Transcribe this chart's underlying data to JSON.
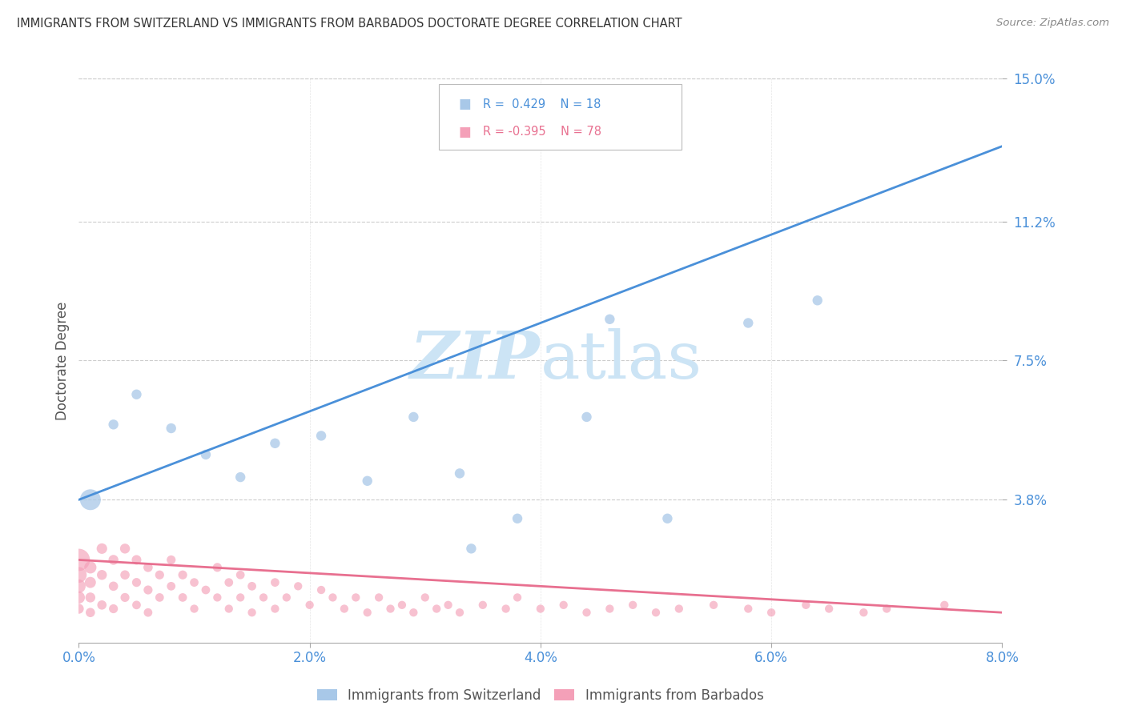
{
  "title": "IMMIGRANTS FROM SWITZERLAND VS IMMIGRANTS FROM BARBADOS DOCTORATE DEGREE CORRELATION CHART",
  "source": "Source: ZipAtlas.com",
  "ylabel": "Doctorate Degree",
  "xlim": [
    0.0,
    0.08
  ],
  "ylim": [
    0.0,
    0.15
  ],
  "xtick_labels": [
    "0.0%",
    "2.0%",
    "4.0%",
    "6.0%",
    "8.0%"
  ],
  "xtick_values": [
    0.0,
    0.02,
    0.04,
    0.06,
    0.08
  ],
  "ytick_labels": [
    "3.8%",
    "7.5%",
    "11.2%",
    "15.0%"
  ],
  "ytick_values": [
    0.038,
    0.075,
    0.112,
    0.15
  ],
  "switzerland_color": "#a8c8e8",
  "barbados_color": "#f4a0b8",
  "trendline_switzerland_color": "#4a90d9",
  "trendline_barbados_color": "#e87090",
  "background_color": "#ffffff",
  "grid_color": "#cccccc",
  "axis_label_color": "#4a90d9",
  "title_color": "#333333",
  "watermark_color": "#cce4f5",
  "switzerland_trendline_x0": 0.0,
  "switzerland_trendline_y0": 0.038,
  "switzerland_trendline_x1": 0.08,
  "switzerland_trendline_y1": 0.132,
  "barbados_trendline_x0": 0.0,
  "barbados_trendline_y0": 0.022,
  "barbados_trendline_x1": 0.08,
  "barbados_trendline_y1": 0.008,
  "switzerland_points_x": [
    0.001,
    0.003,
    0.005,
    0.008,
    0.011,
    0.014,
    0.017,
    0.021,
    0.025,
    0.029,
    0.033,
    0.038,
    0.044,
    0.051,
    0.058,
    0.064,
    0.034,
    0.046
  ],
  "switzerland_points_y": [
    0.038,
    0.058,
    0.066,
    0.057,
    0.05,
    0.044,
    0.053,
    0.055,
    0.043,
    0.06,
    0.045,
    0.033,
    0.06,
    0.033,
    0.085,
    0.091,
    0.025,
    0.086
  ],
  "switzerland_sizes": [
    350,
    80,
    80,
    80,
    80,
    80,
    80,
    80,
    80,
    80,
    80,
    80,
    80,
    80,
    80,
    80,
    80,
    80
  ],
  "barbados_points_x": [
    0.0,
    0.0,
    0.0,
    0.0,
    0.0,
    0.001,
    0.001,
    0.001,
    0.001,
    0.002,
    0.002,
    0.002,
    0.003,
    0.003,
    0.003,
    0.004,
    0.004,
    0.004,
    0.005,
    0.005,
    0.005,
    0.006,
    0.006,
    0.006,
    0.007,
    0.007,
    0.008,
    0.008,
    0.009,
    0.009,
    0.01,
    0.01,
    0.011,
    0.012,
    0.012,
    0.013,
    0.013,
    0.014,
    0.014,
    0.015,
    0.015,
    0.016,
    0.017,
    0.017,
    0.018,
    0.019,
    0.02,
    0.021,
    0.022,
    0.023,
    0.024,
    0.025,
    0.026,
    0.027,
    0.028,
    0.029,
    0.03,
    0.031,
    0.032,
    0.033,
    0.035,
    0.037,
    0.038,
    0.04,
    0.042,
    0.044,
    0.046,
    0.048,
    0.05,
    0.052,
    0.055,
    0.058,
    0.06,
    0.063,
    0.065,
    0.068,
    0.07,
    0.075
  ],
  "barbados_points_y": [
    0.022,
    0.018,
    0.015,
    0.012,
    0.009,
    0.02,
    0.016,
    0.012,
    0.008,
    0.025,
    0.018,
    0.01,
    0.022,
    0.015,
    0.009,
    0.025,
    0.018,
    0.012,
    0.022,
    0.016,
    0.01,
    0.02,
    0.014,
    0.008,
    0.018,
    0.012,
    0.022,
    0.015,
    0.018,
    0.012,
    0.016,
    0.009,
    0.014,
    0.02,
    0.012,
    0.016,
    0.009,
    0.018,
    0.012,
    0.015,
    0.008,
    0.012,
    0.016,
    0.009,
    0.012,
    0.015,
    0.01,
    0.014,
    0.012,
    0.009,
    0.012,
    0.008,
    0.012,
    0.009,
    0.01,
    0.008,
    0.012,
    0.009,
    0.01,
    0.008,
    0.01,
    0.009,
    0.012,
    0.009,
    0.01,
    0.008,
    0.009,
    0.01,
    0.008,
    0.009,
    0.01,
    0.009,
    0.008,
    0.01,
    0.009,
    0.008,
    0.009,
    0.01
  ],
  "barbados_sizes": [
    400,
    200,
    150,
    120,
    80,
    120,
    100,
    80,
    70,
    90,
    80,
    70,
    80,
    70,
    65,
    80,
    70,
    65,
    75,
    65,
    60,
    70,
    65,
    60,
    65,
    60,
    65,
    60,
    65,
    60,
    60,
    55,
    60,
    65,
    55,
    60,
    55,
    60,
    55,
    60,
    55,
    55,
    60,
    55,
    55,
    55,
    55,
    55,
    55,
    55,
    55,
    55,
    55,
    55,
    55,
    55,
    55,
    55,
    55,
    55,
    55,
    55,
    55,
    55,
    55,
    55,
    55,
    55,
    55,
    55,
    55,
    55,
    55,
    55,
    55,
    55,
    55,
    55
  ]
}
